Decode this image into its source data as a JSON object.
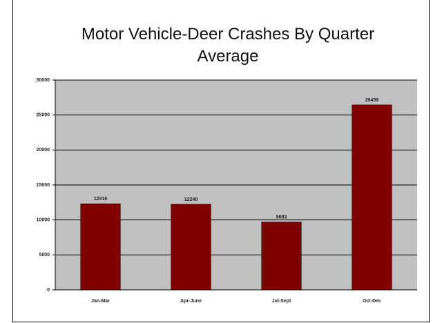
{
  "chart_data": {
    "type": "bar",
    "title": "Motor Vehicle-Deer Crashes By Quarter Average",
    "categories": [
      "Jan-Mar",
      "Apr-June",
      "Jul-Sept",
      "Oct-Dec"
    ],
    "values": [
      12316,
      12240,
      9693,
      26456
    ],
    "color": "#800000",
    "ylim": [
      0,
      30000
    ],
    "yticks": [
      0,
      5000,
      10000,
      15000,
      20000,
      25000,
      30000
    ],
    "grid": true
  }
}
